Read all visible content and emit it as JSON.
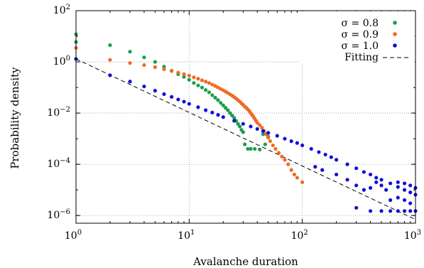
{
  "chart_data": {
    "type": "scatter",
    "title": "",
    "xlabel": "Avalanche duration",
    "ylabel": "Probability density",
    "x_scale": "log",
    "y_scale": "log",
    "xlim": [
      1,
      1000
    ],
    "ylim": [
      5e-07,
      100
    ],
    "grid": true,
    "legend_placement": "top-right",
    "x_ticks": [
      {
        "base": "10",
        "exp": "0"
      },
      {
        "base": "10",
        "exp": "1"
      },
      {
        "base": "10",
        "exp": "2"
      },
      {
        "base": "10",
        "exp": "3"
      }
    ],
    "y_ticks": [
      {
        "base": "10",
        "exp": "−6",
        "value": 1e-06
      },
      {
        "base": "10",
        "exp": "−4",
        "value": 0.0001
      },
      {
        "base": "10",
        "exp": "−2",
        "value": 0.01
      },
      {
        "base": "10",
        "exp": "0",
        "value": 1
      },
      {
        "base": "10",
        "exp": "2",
        "value": 100
      }
    ],
    "series": [
      {
        "name": "σ = 0.8",
        "color": "#1a9e4a",
        "points": [
          [
            1,
            12
          ],
          [
            1,
            6
          ],
          [
            2,
            4.5
          ],
          [
            3,
            2.5
          ],
          [
            4,
            1.5
          ],
          [
            5,
            1.0
          ],
          [
            6,
            0.65
          ],
          [
            7,
            0.45
          ],
          [
            8,
            0.33
          ],
          [
            9,
            0.26
          ],
          [
            10,
            0.2
          ],
          [
            11,
            0.15
          ],
          [
            12,
            0.12
          ],
          [
            13,
            0.1
          ],
          [
            14,
            0.08
          ],
          [
            15,
            0.065
          ],
          [
            16,
            0.05
          ],
          [
            17,
            0.04
          ],
          [
            18,
            0.032
          ],
          [
            19,
            0.025
          ],
          [
            20,
            0.02
          ],
          [
            21,
            0.016
          ],
          [
            22,
            0.013
          ],
          [
            23,
            0.01
          ],
          [
            24,
            0.008
          ],
          [
            25,
            0.0065
          ],
          [
            26,
            0.005
          ],
          [
            27,
            0.0038
          ],
          [
            28,
            0.003
          ],
          [
            29,
            0.0022
          ],
          [
            30,
            0.0018
          ],
          [
            31,
            0.0006
          ],
          [
            33,
            0.0004
          ],
          [
            35,
            0.0004
          ],
          [
            38,
            0.0004
          ],
          [
            42,
            0.00038
          ],
          [
            47,
            0.0006
          ],
          [
            45,
            0.0015
          ],
          [
            50,
            0.0012
          ]
        ]
      },
      {
        "name": "σ = 0.9",
        "color": "#ee6a25",
        "points": [
          [
            1,
            3.5
          ],
          [
            2,
            1.2
          ],
          [
            3,
            0.9
          ],
          [
            4,
            0.75
          ],
          [
            5,
            0.62
          ],
          [
            6,
            0.52
          ],
          [
            7,
            0.44
          ],
          [
            8,
            0.38
          ],
          [
            9,
            0.33
          ],
          [
            10,
            0.29
          ],
          [
            11,
            0.25
          ],
          [
            12,
            0.22
          ],
          [
            13,
            0.19
          ],
          [
            14,
            0.17
          ],
          [
            15,
            0.15
          ],
          [
            16,
            0.13
          ],
          [
            17,
            0.115
          ],
          [
            18,
            0.1
          ],
          [
            19,
            0.088
          ],
          [
            20,
            0.078
          ],
          [
            21,
            0.069
          ],
          [
            22,
            0.061
          ],
          [
            23,
            0.054
          ],
          [
            24,
            0.048
          ],
          [
            25,
            0.042
          ],
          [
            26,
            0.037
          ],
          [
            27,
            0.032
          ],
          [
            28,
            0.028
          ],
          [
            29,
            0.024
          ],
          [
            30,
            0.021
          ],
          [
            31,
            0.018
          ],
          [
            32,
            0.016
          ],
          [
            33,
            0.014
          ],
          [
            34,
            0.012
          ],
          [
            35,
            0.01
          ],
          [
            36,
            0.0085
          ],
          [
            37,
            0.0072
          ],
          [
            38,
            0.006
          ],
          [
            39,
            0.005
          ],
          [
            40,
            0.0042
          ],
          [
            42,
            0.0034
          ],
          [
            44,
            0.0027
          ],
          [
            46,
            0.002
          ],
          [
            48,
            0.0015
          ],
          [
            50,
            0.0011
          ],
          [
            52,
            0.0008
          ],
          [
            55,
            0.00055
          ],
          [
            58,
            0.0004
          ],
          [
            62,
            0.00028
          ],
          [
            66,
            0.0002
          ],
          [
            70,
            0.00015
          ],
          [
            75,
            0.0001
          ],
          [
            80,
            6e-05
          ],
          [
            85,
            4e-05
          ],
          [
            90,
            3e-05
          ],
          [
            100,
            2e-05
          ]
        ]
      },
      {
        "name": "σ = 1.0",
        "color": "#1010d6",
        "points": [
          [
            1,
            1.3
          ],
          [
            2,
            0.3
          ],
          [
            3,
            0.17
          ],
          [
            4,
            0.11
          ],
          [
            5,
            0.075
          ],
          [
            6,
            0.055
          ],
          [
            7,
            0.043
          ],
          [
            8,
            0.034
          ],
          [
            9,
            0.028
          ],
          [
            10,
            0.023
          ],
          [
            12,
            0.017
          ],
          [
            14,
            0.013
          ],
          [
            16,
            0.0105
          ],
          [
            18,
            0.0085
          ],
          [
            20,
            0.007
          ],
          [
            25,
            0.005
          ],
          [
            30,
            0.0038
          ],
          [
            35,
            0.003
          ],
          [
            40,
            0.0024
          ],
          [
            45,
            0.002
          ],
          [
            50,
            0.0017
          ],
          [
            60,
            0.0013
          ],
          [
            70,
            0.001
          ],
          [
            80,
            0.0008
          ],
          [
            90,
            0.00068
          ],
          [
            100,
            0.00055
          ],
          [
            120,
            0.0004
          ],
          [
            140,
            0.0003
          ],
          [
            160,
            0.00024
          ],
          [
            180,
            0.00019
          ],
          [
            200,
            0.00015
          ],
          [
            250,
            0.0001
          ],
          [
            300,
            7e-05
          ],
          [
            350,
            5e-05
          ],
          [
            400,
            4e-05
          ],
          [
            450,
            3e-05
          ],
          [
            500,
            2.5e-05
          ],
          [
            600,
            1.8e-05
          ],
          [
            700,
            1.3e-05
          ],
          [
            800,
            1e-05
          ],
          [
            900,
            8e-06
          ],
          [
            1000,
            6.5e-06
          ],
          [
            130,
            8e-05
          ],
          [
            150,
            6e-05
          ],
          [
            200,
            4e-05
          ],
          [
            250,
            2.5e-05
          ],
          [
            300,
            1.5e-05
          ],
          [
            350,
            1e-05
          ],
          [
            400,
            1.2e-05
          ],
          [
            450,
            2e-05
          ],
          [
            500,
            1.5e-05
          ],
          [
            550,
            1e-05
          ],
          [
            300,
            2e-06
          ],
          [
            400,
            1.5e-06
          ],
          [
            500,
            1.5e-06
          ],
          [
            600,
            1.5e-06
          ],
          [
            700,
            1.5e-06
          ],
          [
            800,
            1.5e-06
          ],
          [
            900,
            1.5e-06
          ],
          [
            1000,
            1.5e-06
          ],
          [
            600,
            4e-06
          ],
          [
            700,
            5e-06
          ],
          [
            800,
            4e-06
          ],
          [
            900,
            3e-06
          ],
          [
            700,
            2e-05
          ],
          [
            800,
            1.8e-05
          ],
          [
            900,
            1.5e-05
          ],
          [
            1000,
            1.2e-05
          ]
        ]
      }
    ],
    "fit_line": {
      "name": "Fitting",
      "style": "dashed",
      "color": "#000000",
      "points": [
        [
          1,
          1.3
        ],
        [
          1000,
          7e-07
        ]
      ]
    }
  }
}
